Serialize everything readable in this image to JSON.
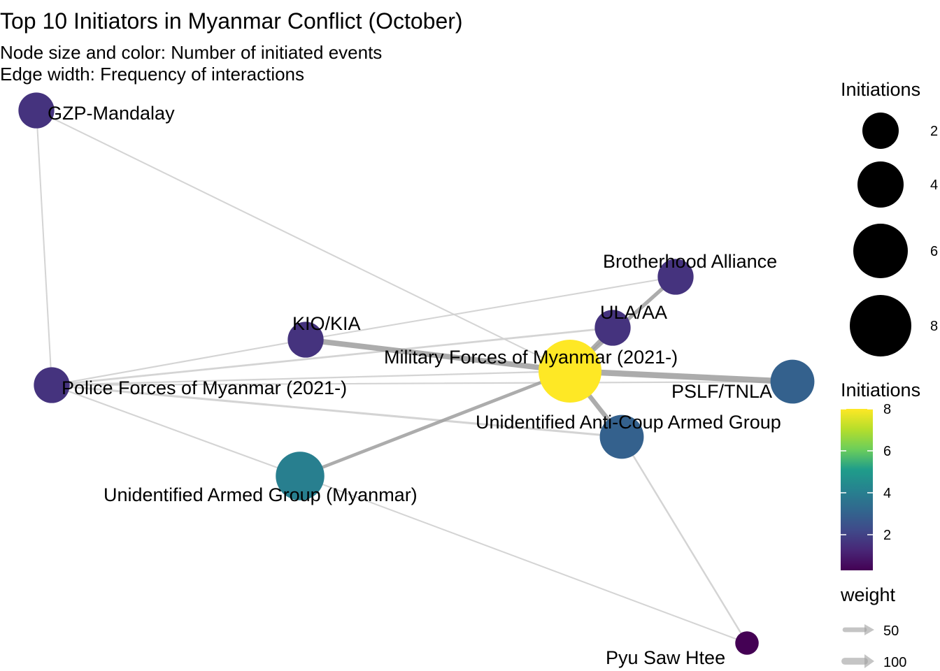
{
  "title": "Top 10 Initiators in Myanmar Conflict (October)",
  "subtitle_line1": "Node size and color: Number of initiated events",
  "subtitle_line2": "Edge width: Frequency of interactions",
  "colors": {
    "edge": "#9e9e9e",
    "edge_light": "#cfcfcf",
    "viridis": [
      "#440154",
      "#482777",
      "#3f4a8a",
      "#31678e",
      "#26838f",
      "#1f9d8a",
      "#6cce5a",
      "#b6de2b",
      "#fee825"
    ]
  },
  "nodes": [
    {
      "id": "gzp",
      "label": "GZP-Mandalay",
      "initiations": 1.6
    },
    {
      "id": "police",
      "label": "Police Forces of Myanmar (2021-)",
      "initiations": 1.6
    },
    {
      "id": "kio",
      "label": "KIO/KIA",
      "initiations": 1.6
    },
    {
      "id": "brotherhood",
      "label": "Brotherhood Alliance",
      "initiations": 1.6
    },
    {
      "id": "ula",
      "label": "ULA/AA",
      "initiations": 1.6
    },
    {
      "id": "military",
      "label": "Military Forces of Myanmar (2021-)",
      "initiations": 8
    },
    {
      "id": "pslf",
      "label": "PSLF/TNLA",
      "initiations": 3
    },
    {
      "id": "anticoup",
      "label": "Unidentified Anti-Coup Armed Group",
      "initiations": 3
    },
    {
      "id": "armed",
      "label": "Unidentified Armed Group (Myanmar)",
      "initiations": 4
    },
    {
      "id": "pyu",
      "label": "Pyu Saw Htee",
      "initiations": 0.3
    }
  ],
  "edges": [
    {
      "from": "gzp",
      "to": "police",
      "weight": 8
    },
    {
      "from": "gzp",
      "to": "military",
      "weight": 8
    },
    {
      "from": "police",
      "to": "kio",
      "weight": 10
    },
    {
      "from": "police",
      "to": "ula",
      "weight": 20
    },
    {
      "from": "police",
      "to": "military",
      "weight": 12
    },
    {
      "from": "police",
      "to": "pslf",
      "weight": 10
    },
    {
      "from": "police",
      "to": "anticoup",
      "weight": 25
    },
    {
      "from": "police",
      "to": "armed",
      "weight": 10
    },
    {
      "from": "kio",
      "to": "military",
      "weight": 100
    },
    {
      "from": "kio",
      "to": "brotherhood",
      "weight": 8
    },
    {
      "from": "brotherhood",
      "to": "military",
      "weight": 60
    },
    {
      "from": "ula",
      "to": "military",
      "weight": 60
    },
    {
      "from": "military",
      "to": "pslf",
      "weight": 110
    },
    {
      "from": "military",
      "to": "anticoup",
      "weight": 80
    },
    {
      "from": "military",
      "to": "armed",
      "weight": 50
    },
    {
      "from": "anticoup",
      "to": "pyu",
      "weight": 15
    },
    {
      "from": "armed",
      "to": "pyu",
      "weight": 8
    }
  ],
  "legend_size": {
    "title": "Initiations",
    "items": [
      {
        "label": "2",
        "value": 2
      },
      {
        "label": "4",
        "value": 4
      },
      {
        "label": "6",
        "value": 6
      },
      {
        "label": "8",
        "value": 8
      }
    ]
  },
  "legend_color": {
    "title": "Initiations",
    "ticks": [
      {
        "label": "8",
        "value": 8
      },
      {
        "label": "6",
        "value": 6
      },
      {
        "label": "4",
        "value": 4
      },
      {
        "label": "2",
        "value": 2
      }
    ],
    "min": 0.3,
    "max": 8
  },
  "legend_weight": {
    "title": "weight",
    "items": [
      {
        "label": "50",
        "value": 50
      },
      {
        "label": "100",
        "value": 100
      }
    ]
  }
}
